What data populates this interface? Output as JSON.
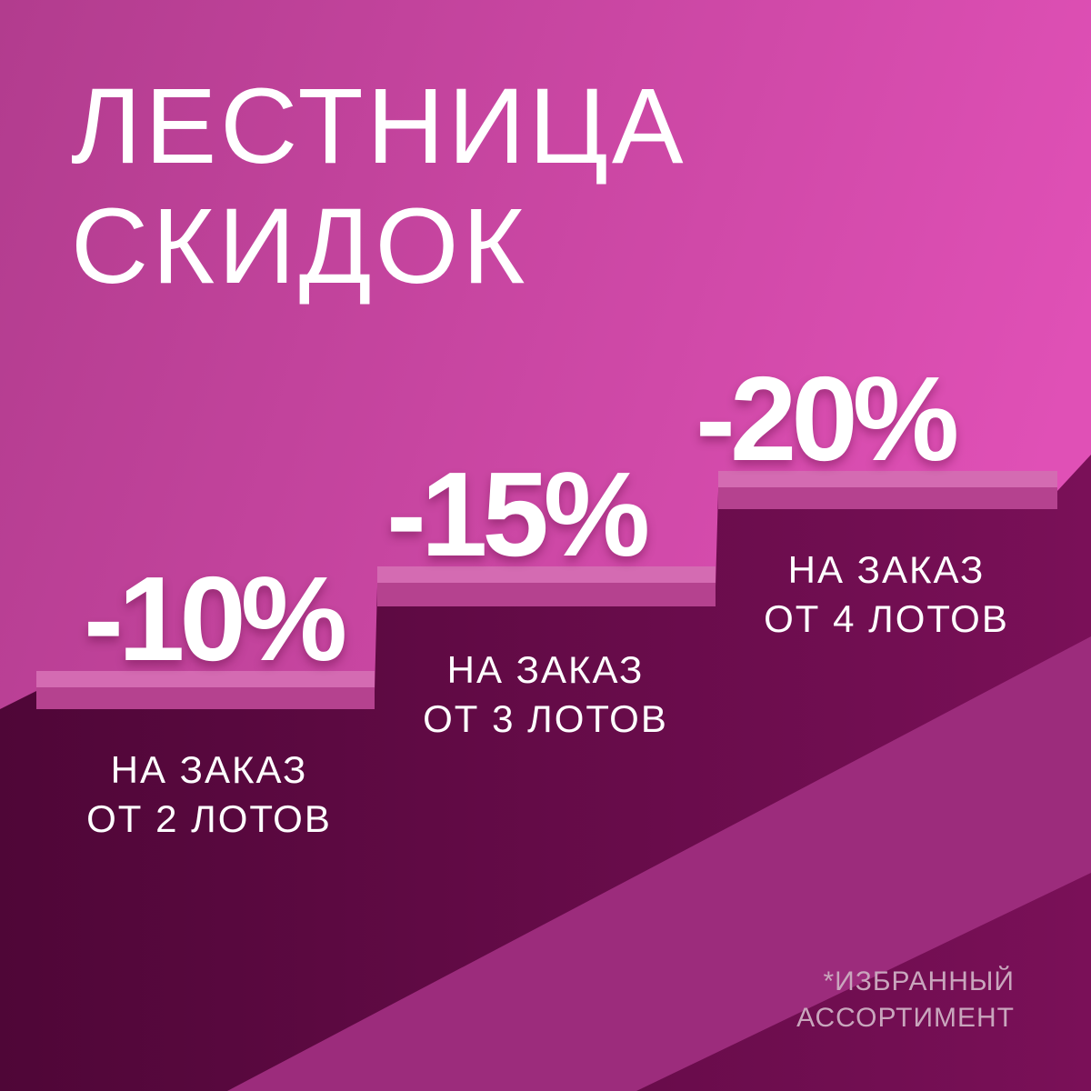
{
  "title": {
    "line1": "ЛЕСТНИЦА",
    "line2": "СКИДОК"
  },
  "steps": [
    {
      "discount": "-10%",
      "caption_line1": "НА ЗАКАЗ",
      "caption_line2": "ОТ 2 ЛОТОВ"
    },
    {
      "discount": "-15%",
      "caption_line1": "НА ЗАКАЗ",
      "caption_line2": "ОТ 3 ЛОТОВ"
    },
    {
      "discount": "-20%",
      "caption_line1": "НА ЗАКАЗ",
      "caption_line2": "ОТ 4 ЛОТОВ"
    }
  ],
  "footnote": {
    "line1": "*ИЗБРАННЫЙ",
    "line2": "АССОРТИМЕНТ"
  },
  "colors": {
    "background": "#d54aac",
    "shadow": "#5a0840",
    "shelf": "#c24e9e",
    "text": "#ffffff"
  }
}
